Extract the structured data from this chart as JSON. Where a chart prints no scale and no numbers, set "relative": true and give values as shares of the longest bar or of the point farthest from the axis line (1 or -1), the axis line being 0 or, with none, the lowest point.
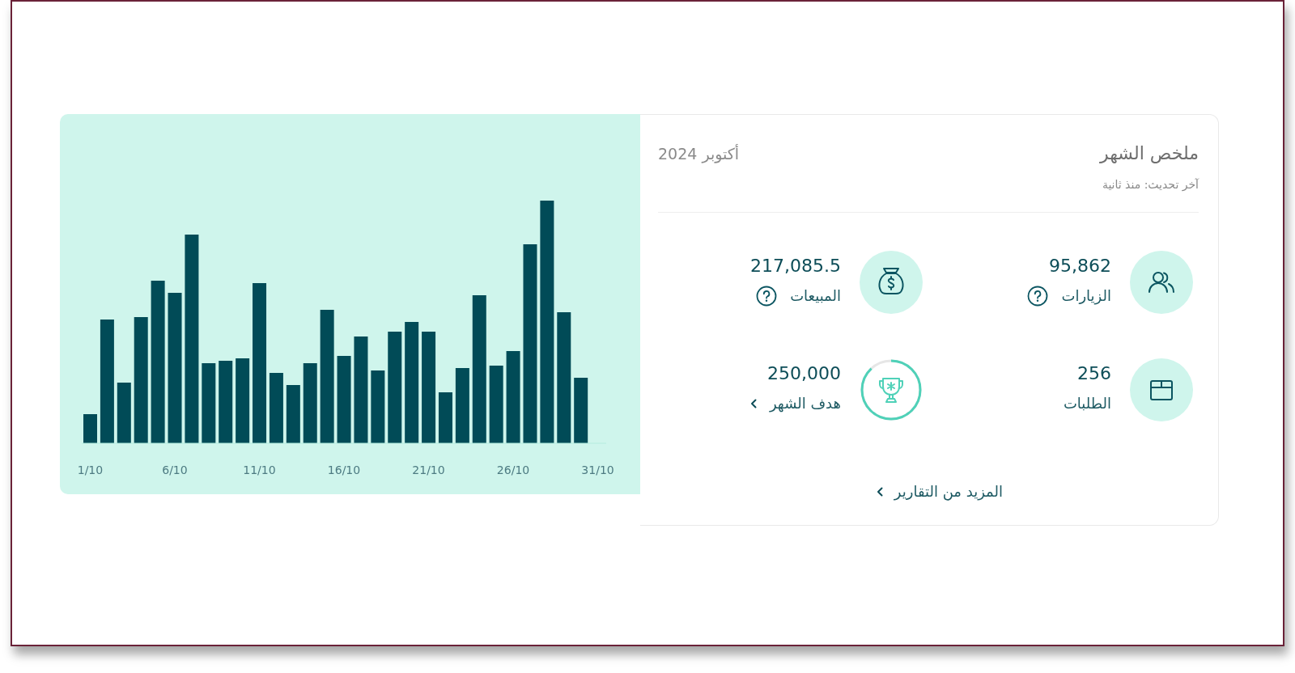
{
  "chart_data": [
    {
      "type": "bar",
      "categories": [
        "1/10",
        null,
        null,
        null,
        null,
        "6/10",
        null,
        null,
        null,
        null,
        "11/10",
        null,
        null,
        null,
        null,
        "16/10",
        null,
        null,
        null,
        null,
        "21/10",
        null,
        null,
        null,
        null,
        "26/10",
        null,
        null,
        null,
        null,
        "31/10"
      ],
      "values": [
        0.12,
        0.51,
        0.25,
        0.52,
        0.67,
        0.62,
        0.86,
        0.33,
        0.34,
        0.35,
        0.66,
        0.29,
        0.24,
        0.33,
        0.55,
        0.36,
        0.44,
        0.3,
        0.46,
        0.5,
        0.46,
        0.21,
        0.31,
        0.61,
        0.32,
        0.38,
        0.82,
        1,
        0.54,
        0.27,
        null
      ],
      "color": "#014b57",
      "relative": true
    },
    {
      "type": "other",
      "title": "ملخص الشهر",
      "subtitle": "آخر تحديث: منذ ثانية",
      "annotations": [
        "أكتوبر 2024",
        "95,862",
        "الزيارات",
        "217,085.5",
        "المبيعات",
        "256",
        "الطلبات",
        "250,000",
        "هدف الشهر",
        "المزيد من التقارير"
      ]
    }
  ]
}
